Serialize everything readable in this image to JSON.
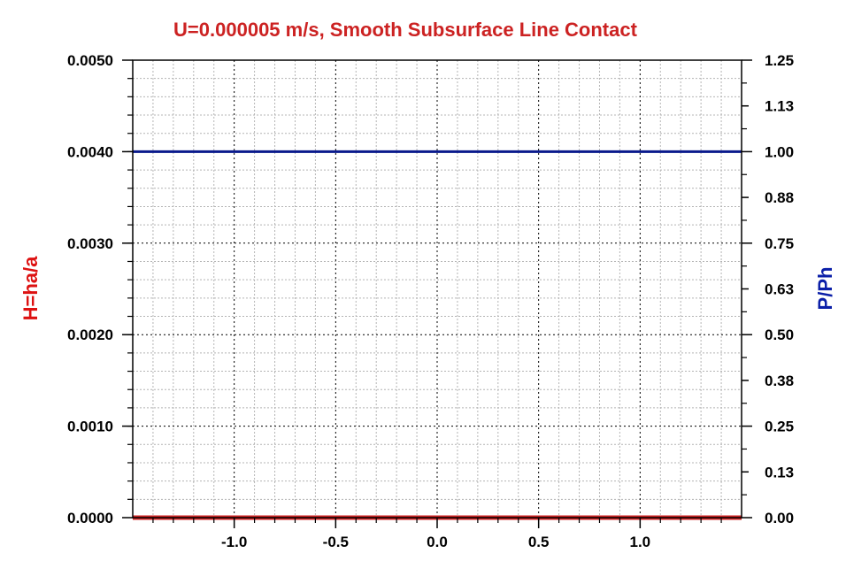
{
  "chart_data": {
    "type": "line",
    "title": "U=0.000005 m/s, Smooth Subsurface Line Contact",
    "xlabel": "",
    "ylabel_left": "H=ha/a",
    "ylabel_right": "P/Ph",
    "xlim": [
      -1.5,
      1.5
    ],
    "ylim_left": [
      0,
      0.005
    ],
    "ylim_right": [
      0,
      1.25
    ],
    "x_ticks": [
      "-1.0",
      "-0.5",
      "0.0",
      "0.5",
      "1.0"
    ],
    "x_tick_values": [
      -1.0,
      -0.5,
      0.0,
      0.5,
      1.0
    ],
    "y_left_ticks": [
      "0.0050",
      "0.0040",
      "0.0030",
      "0.0020",
      "0.0010",
      "0.0000"
    ],
    "y_left_tick_values": [
      0.005,
      0.004,
      0.003,
      0.002,
      0.001,
      0.0
    ],
    "y_right_ticks": [
      "1.25",
      "1.13",
      "1.00",
      "0.88",
      "0.75",
      "0.63",
      "0.50",
      "0.38",
      "0.25",
      "0.13",
      "0.00"
    ],
    "y_right_tick_values": [
      1.25,
      1.125,
      1.0,
      0.875,
      0.75,
      0.625,
      0.5,
      0.375,
      0.25,
      0.125,
      0.0
    ],
    "grid": true,
    "series": [
      {
        "axis": "left",
        "color": "#cc2222",
        "x": [
          -1.5,
          1.5
        ],
        "y": [
          0.0,
          0.0
        ]
      },
      {
        "axis": "right",
        "color": "#0a1a8c",
        "x": [
          -1.5,
          1.5
        ],
        "y": [
          1.0,
          1.0
        ]
      }
    ],
    "colors": {
      "title": "#cc2222",
      "left_axis_title": "#dd1111",
      "right_axis_title": "#0b1fa8"
    }
  }
}
